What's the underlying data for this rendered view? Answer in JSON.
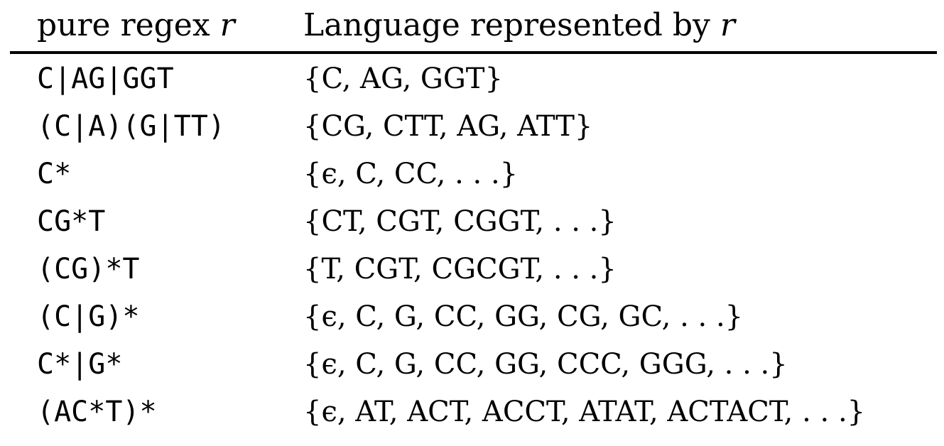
{
  "table": {
    "header": {
      "col1": {
        "text": "pure regex ",
        "var": "r"
      },
      "col2": {
        "text": "Language represented by ",
        "var": "r"
      }
    },
    "rows": [
      {
        "regex": "C|AG|GGT",
        "language": "{C, AG, GGT}"
      },
      {
        "regex": "(C|A)(G|TT)",
        "language": "{CG, CTT, AG, ATT}"
      },
      {
        "regex": "C*",
        "language": "{ϵ, C, CC, . . .}"
      },
      {
        "regex": "CG*T",
        "language": "{CT, CGT, CGGT, . . .}"
      },
      {
        "regex": "(CG)*T",
        "language": "{T, CGT, CGCGT, . . .}"
      },
      {
        "regex": "(C|G)*",
        "language": "{ϵ, C, G, CC, GG, CG, GC, . . .}"
      },
      {
        "regex": "C*|G*",
        "language": "{ϵ, C, G, CC, GG, CCC, GGG, . . .}"
      },
      {
        "regex": "(AC*T)*",
        "language": "{ϵ, AT, ACT, ACCT, ATAT, ACTACT, . . .}"
      }
    ]
  }
}
